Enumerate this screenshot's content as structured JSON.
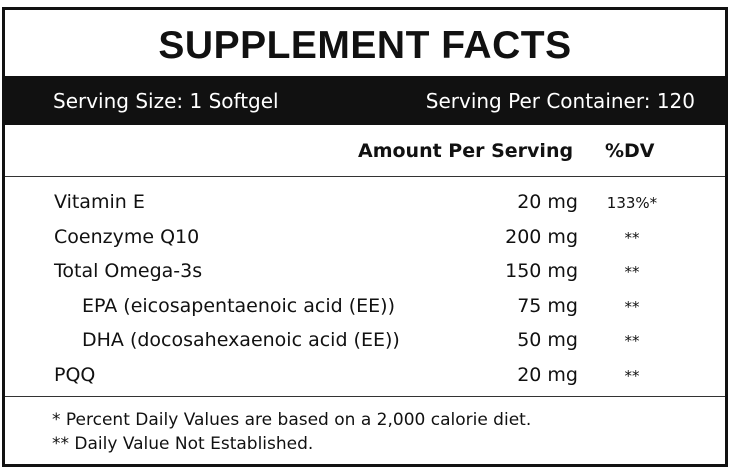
{
  "header": {
    "title": "SUPPLEMENT FACTS"
  },
  "serving": {
    "size": "Serving Size: 1 Softgel",
    "per_container": "Serving Per Container: 120"
  },
  "table": {
    "columns": [
      "Amount Per Serving",
      "%DV"
    ],
    "rows": [
      [
        "Vitamin E",
        "20 mg",
        "133%*"
      ],
      [
        "Coenzyme Q10",
        "200 mg",
        "**"
      ],
      [
        "Total Omega-3s",
        "150 mg",
        "**"
      ],
      [
        "EPA (eicosapentaenoic acid (EE))",
        "75 mg",
        "**"
      ],
      [
        "DHA (docosahexaenoic acid (EE))",
        "50 mg",
        "**"
      ],
      [
        "PQQ",
        "20 mg",
        "**"
      ]
    ]
  },
  "footnotes": [
    "* Percent Daily Values are based on a 2,000 calorie diet.",
    "** Daily Value Not Established."
  ]
}
